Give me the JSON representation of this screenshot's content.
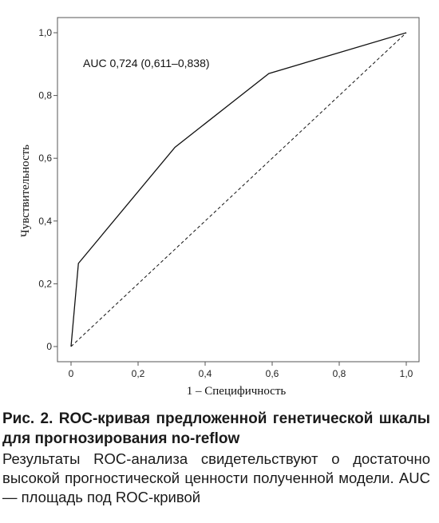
{
  "chart_data": {
    "type": "line",
    "xlabel": "1 – Специфичность",
    "ylabel": "Чувствительность",
    "xlim": [
      0,
      1.0
    ],
    "ylim": [
      0,
      1.0
    ],
    "x_ticks": [
      "0",
      "0,2",
      "0,4",
      "0,6",
      "0,8",
      "1,0"
    ],
    "y_ticks": [
      "0",
      "0,2",
      "0,4",
      "0,6",
      "0,8",
      "1,0"
    ],
    "grid": false,
    "annotation": "AUC 0,724 (0,611–0,838)",
    "series": [
      {
        "style": "solid",
        "x": [
          0,
          0.022,
          0.31,
          0.59,
          1.0
        ],
        "y": [
          0,
          0.265,
          0.635,
          0.87,
          1.0
        ]
      },
      {
        "style": "dashed",
        "x": [
          0,
          1.0
        ],
        "y": [
          0,
          1.0
        ]
      }
    ]
  },
  "caption": {
    "title": "Рис. 2. ROC-кривая предложенной генетической шкалы для прогнозирования no-reflow",
    "body": "Результаты ROC-анализа свидетельствуют о достаточно высокой прогностической ценности полученной модели. AUC — площадь под ROC-кривой"
  }
}
